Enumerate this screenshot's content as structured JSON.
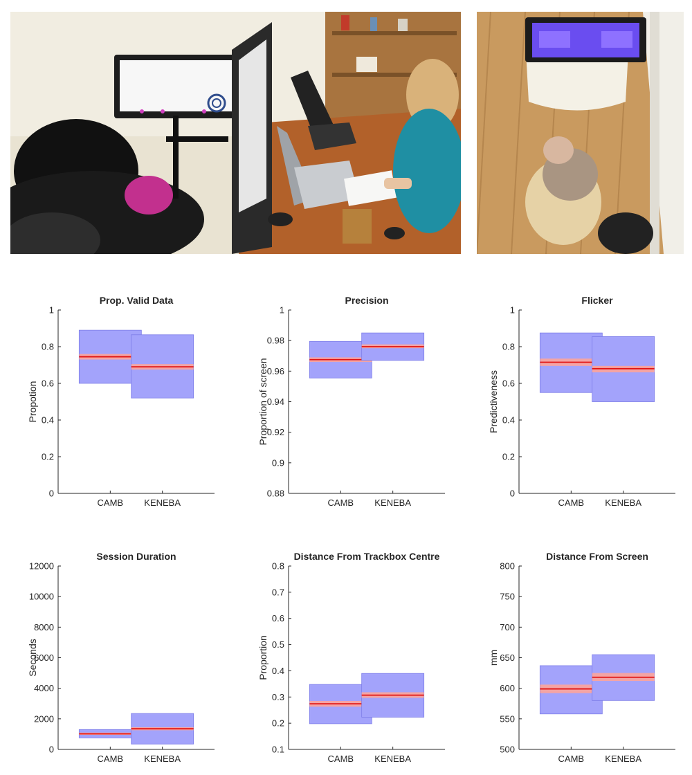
{
  "photos": [
    {
      "name": "lab-setup-photo",
      "description": ""
    },
    {
      "name": "home-setup-photo",
      "description": ""
    }
  ],
  "colors": {
    "box": "#a3a3fb",
    "box_edge": "#7d7de8",
    "ci": "#f4a4a4",
    "median": "#e11414"
  },
  "chart_data": [
    {
      "type": "box",
      "title": "Prop. Valid Data",
      "ylabel": "Propotion",
      "categories": [
        "CAMB",
        "KENEBA"
      ],
      "ylim": [
        0,
        1
      ],
      "yticks": [
        "0",
        "0.2",
        "0.4",
        "0.6",
        "0.8",
        "1"
      ],
      "series": [
        {
          "category": "CAMB",
          "low": 0.6,
          "high": 0.89,
          "ci_low": 0.73,
          "ci_high": 0.76,
          "median": 0.745
        },
        {
          "category": "KENEBA",
          "low": 0.52,
          "high": 0.865,
          "ci_low": 0.675,
          "ci_high": 0.705,
          "median": 0.69
        }
      ]
    },
    {
      "type": "box",
      "title": "Precision",
      "ylabel": "Proportion of screen",
      "categories": [
        "CAMB",
        "KENEBA"
      ],
      "ylim": [
        0.88,
        1
      ],
      "yticks": [
        "0.88",
        "0.9",
        "0.92",
        "0.94",
        "0.96",
        "0.98",
        "1"
      ],
      "series": [
        {
          "category": "CAMB",
          "low": 0.9555,
          "high": 0.9795,
          "ci_low": 0.966,
          "ci_high": 0.969,
          "median": 0.9675
        },
        {
          "category": "KENEBA",
          "low": 0.967,
          "high": 0.985,
          "ci_low": 0.975,
          "ci_high": 0.9775,
          "median": 0.976
        }
      ]
    },
    {
      "type": "box",
      "title": "Flicker",
      "ylabel": "Predictiveness",
      "categories": [
        "CAMB",
        "KENEBA"
      ],
      "ylim": [
        0,
        1
      ],
      "yticks": [
        "0",
        "0.2",
        "0.4",
        "0.6",
        "0.8",
        "1"
      ],
      "series": [
        {
          "category": "CAMB",
          "low": 0.55,
          "high": 0.875,
          "ci_low": 0.695,
          "ci_high": 0.735,
          "median": 0.715
        },
        {
          "category": "KENEBA",
          "low": 0.5,
          "high": 0.855,
          "ci_low": 0.66,
          "ci_high": 0.695,
          "median": 0.68
        }
      ]
    },
    {
      "type": "box",
      "title": "Session Duration",
      "ylabel": "Seconds",
      "categories": [
        "CAMB",
        "KENEBA"
      ],
      "ylim": [
        0,
        12000
      ],
      "yticks": [
        "0",
        "2000",
        "4000",
        "6000",
        "8000",
        "10000",
        "12000"
      ],
      "series": [
        {
          "category": "CAMB",
          "low": 750,
          "high": 1300,
          "ci_low": 950,
          "ci_high": 1100,
          "median": 1020
        },
        {
          "category": "KENEBA",
          "low": 350,
          "high": 2350,
          "ci_low": 1250,
          "ci_high": 1450,
          "median": 1350
        }
      ]
    },
    {
      "type": "box",
      "title": "Distance From Trackbox Centre",
      "ylabel": "Proportion",
      "categories": [
        "CAMB",
        "KENEBA"
      ],
      "ylim": [
        0.1,
        0.8
      ],
      "yticks": [
        "0.1",
        "0.2",
        "0.3",
        "0.4",
        "0.5",
        "0.6",
        "0.7",
        "0.8"
      ],
      "series": [
        {
          "category": "CAMB",
          "low": 0.198,
          "high": 0.348,
          "ci_low": 0.263,
          "ci_high": 0.285,
          "median": 0.274
        },
        {
          "category": "KENEBA",
          "low": 0.223,
          "high": 0.39,
          "ci_low": 0.297,
          "ci_high": 0.318,
          "median": 0.307
        }
      ]
    },
    {
      "type": "box",
      "title": "Distance From Screen",
      "ylabel": "mm",
      "categories": [
        "CAMB",
        "KENEBA"
      ],
      "ylim": [
        500,
        800
      ],
      "yticks": [
        "500",
        "550",
        "600",
        "650",
        "700",
        "750",
        "800"
      ],
      "series": [
        {
          "category": "CAMB",
          "low": 558,
          "high": 637,
          "ci_low": 592,
          "ci_high": 606,
          "median": 599
        },
        {
          "category": "KENEBA",
          "low": 580,
          "high": 655,
          "ci_low": 612,
          "ci_high": 625,
          "median": 618
        }
      ]
    }
  ]
}
